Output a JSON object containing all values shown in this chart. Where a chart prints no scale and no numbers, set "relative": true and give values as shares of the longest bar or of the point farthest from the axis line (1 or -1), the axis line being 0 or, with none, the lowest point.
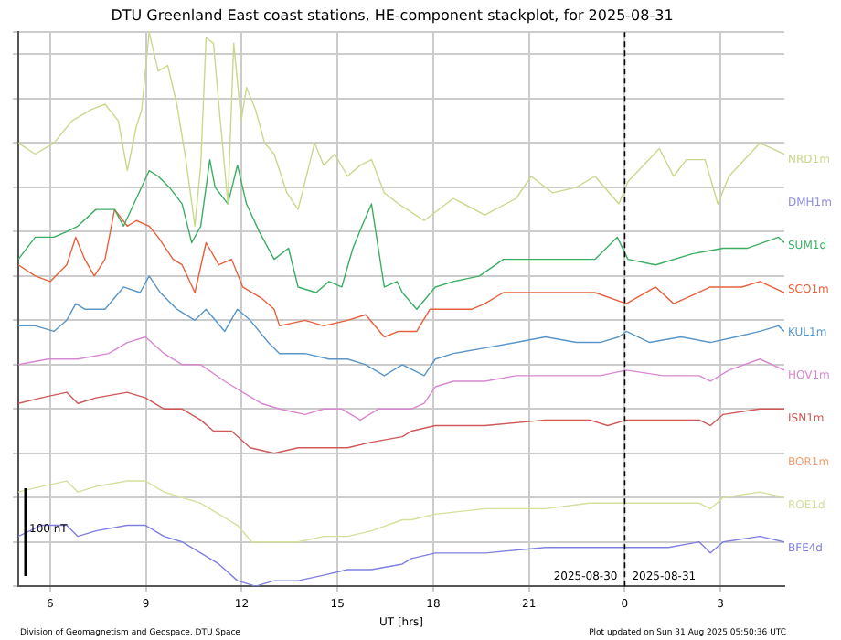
{
  "chart_data": {
    "type": "line",
    "title": "DTU Greenland East coast stations, HE-component stackplot, for 2025-08-31",
    "xlabel": "UT [hrs]",
    "relative": true,
    "grid": true,
    "legend": false,
    "marker": "none",
    "line_style": "solid",
    "xlim": [
      "2025-08-30T05:00",
      "2025-08-31T05:00"
    ],
    "xticks": [
      {
        "value": "2025-08-30T06:00",
        "label": "6"
      },
      {
        "value": "2025-08-30T09:00",
        "label": "9"
      },
      {
        "value": "2025-08-30T12:00",
        "label": "12"
      },
      {
        "value": "2025-08-30T15:00",
        "label": "15"
      },
      {
        "value": "2025-08-30T18:00",
        "label": "18"
      },
      {
        "value": "2025-08-30T21:00",
        "label": "21"
      },
      {
        "value": "2025-08-31T00:00",
        "label": "0"
      },
      {
        "value": "2025-08-31T03:00",
        "label": "3"
      }
    ],
    "ref_lines": [
      {
        "axis": "x",
        "value": "2025-08-31T00:00",
        "color": "#000000",
        "line_style": "dashed"
      }
    ],
    "annotations": [
      "2025-08-30",
      "2025-08-31",
      "100 nT",
      "Division of Geomagnetism and Geospace, DTU Space",
      "Plot updated on Sun 31 Aug 2025 05:50:36 UTC"
    ],
    "series": [
      {
        "name": "NRD1m",
        "color": "#c8d88c",
        "x": [
          "2025-08-30T05:00",
          "2025-08-30T05:32",
          "2025-08-30T06:07",
          "2025-08-30T06:41",
          "2025-08-30T07:16",
          "2025-08-30T07:43",
          "2025-08-30T08:08",
          "2025-08-30T08:25",
          "2025-08-30T08:42",
          "2025-08-30T08:52",
          "2025-08-30T09:06",
          "2025-08-30T09:23",
          "2025-08-30T09:41",
          "2025-08-30T09:58",
          "2025-08-30T10:15",
          "2025-08-30T10:32",
          "2025-08-30T10:43",
          "2025-08-30T10:53",
          "2025-08-30T11:07",
          "2025-08-30T11:17",
          "2025-08-30T11:34",
          "2025-08-30T11:45",
          "2025-08-30T11:59",
          "2025-08-30T12:09",
          "2025-08-30T12:26",
          "2025-08-30T12:43",
          "2025-08-30T13:01",
          "2025-08-30T13:25",
          "2025-08-30T13:46",
          "2025-08-30T14:17",
          "2025-08-30T14:34",
          "2025-08-30T14:55",
          "2025-08-30T15:19",
          "2025-08-30T15:43",
          "2025-08-30T16:04",
          "2025-08-30T16:28",
          "2025-08-30T16:55",
          "2025-08-30T17:43",
          "2025-08-30T18:38",
          "2025-08-30T19:37",
          "2025-08-30T20:36",
          "2025-08-30T21:04",
          "2025-08-30T21:45",
          "2025-08-30T22:29",
          "2025-08-30T23:04",
          "2025-08-30T23:49",
          "2025-08-31T00:06",
          "2025-08-31T01:05",
          "2025-08-31T01:32",
          "2025-08-31T01:56",
          "2025-08-31T02:31",
          "2025-08-31T02:55",
          "2025-08-31T03:16",
          "2025-08-31T04:14",
          "2025-08-31T05:00"
        ],
        "values": [
          0.8,
          0.78,
          0.8,
          0.84,
          0.86,
          0.87,
          0.84,
          0.75,
          0.83,
          0.86,
          1.0,
          0.93,
          0.94,
          0.87,
          0.77,
          0.65,
          0.76,
          0.99,
          0.98,
          0.87,
          0.69,
          0.98,
          0.84,
          0.9,
          0.86,
          0.8,
          0.78,
          0.71,
          0.68,
          0.8,
          0.76,
          0.78,
          0.74,
          0.76,
          0.77,
          0.71,
          0.69,
          0.66,
          0.7,
          0.67,
          0.7,
          0.74,
          0.71,
          0.72,
          0.74,
          0.69,
          0.73,
          0.79,
          0.74,
          0.77,
          0.77,
          0.69,
          0.74,
          0.8,
          0.78
        ]
      },
      {
        "name": "DMH1m",
        "color": "#8c8ce0"
      },
      {
        "name": "SUM1d",
        "color": "#3cae64",
        "x": [
          "2025-08-30T05:00",
          "2025-08-30T05:32",
          "2025-08-30T06:07",
          "2025-08-30T06:31",
          "2025-08-30T06:52",
          "2025-08-30T07:26",
          "2025-08-30T08:01",
          "2025-08-30T08:18",
          "2025-08-30T08:42",
          "2025-08-30T09:06",
          "2025-08-30T09:23",
          "2025-08-30T09:44",
          "2025-08-30T10:08",
          "2025-08-30T10:26",
          "2025-08-30T10:43",
          "2025-08-30T11:00",
          "2025-08-30T11:10",
          "2025-08-30T11:34",
          "2025-08-30T11:52",
          "2025-08-30T12:09",
          "2025-08-30T12:33",
          "2025-08-30T13:01",
          "2025-08-30T13:28",
          "2025-08-30T13:46",
          "2025-08-30T14:20",
          "2025-08-30T14:44",
          "2025-08-30T15:08",
          "2025-08-30T15:29",
          "2025-08-30T15:46",
          "2025-08-30T16:04",
          "2025-08-30T16:28",
          "2025-08-30T16:52",
          "2025-08-30T17:02",
          "2025-08-30T17:29",
          "2025-08-30T18:04",
          "2025-08-30T18:38",
          "2025-08-30T19:27",
          "2025-08-30T20:12",
          "2025-08-30T21:10",
          "2025-08-30T21:55",
          "2025-08-30T23:04",
          "2025-08-30T23:46",
          "2025-08-31T00:06",
          "2025-08-31T00:58",
          "2025-08-31T02:07",
          "2025-08-31T03:05",
          "2025-08-31T03:50",
          "2025-08-31T04:49",
          "2025-08-31T05:00"
        ],
        "values": [
          0.59,
          0.63,
          0.63,
          0.64,
          0.65,
          0.68,
          0.68,
          0.65,
          0.7,
          0.75,
          0.74,
          0.72,
          0.69,
          0.62,
          0.65,
          0.77,
          0.72,
          0.69,
          0.76,
          0.69,
          0.64,
          0.59,
          0.61,
          0.54,
          0.53,
          0.55,
          0.54,
          0.61,
          0.65,
          0.69,
          0.54,
          0.55,
          0.53,
          0.5,
          0.54,
          0.55,
          0.56,
          0.59,
          0.59,
          0.59,
          0.59,
          0.63,
          0.59,
          0.58,
          0.6,
          0.61,
          0.61,
          0.63,
          0.62
        ]
      },
      {
        "name": "SCO1m",
        "color": "#e8603c",
        "x": [
          "2025-08-30T05:00",
          "2025-08-30T05:32",
          "2025-08-30T06:00",
          "2025-08-30T06:31",
          "2025-08-30T06:48",
          "2025-08-30T07:05",
          "2025-08-30T07:23",
          "2025-08-30T07:43",
          "2025-08-30T08:01",
          "2025-08-30T08:25",
          "2025-08-30T08:42",
          "2025-08-30T09:06",
          "2025-08-30T09:23",
          "2025-08-30T09:51",
          "2025-08-30T10:08",
          "2025-08-30T10:32",
          "2025-08-30T10:53",
          "2025-08-30T11:17",
          "2025-08-30T11:41",
          "2025-08-30T12:02",
          "2025-08-30T12:37",
          "2025-08-30T13:01",
          "2025-08-30T13:11",
          "2025-08-30T13:59",
          "2025-08-30T14:34",
          "2025-08-30T15:19",
          "2025-08-30T15:53",
          "2025-08-30T16:28",
          "2025-08-30T16:55",
          "2025-08-30T17:29",
          "2025-08-30T17:54",
          "2025-08-30T18:38",
          "2025-08-30T19:13",
          "2025-08-30T19:37",
          "2025-08-30T20:12",
          "2025-08-30T21:10",
          "2025-08-30T22:05",
          "2025-08-30T23:04",
          "2025-08-31T00:03",
          "2025-08-31T00:58",
          "2025-08-31T01:32",
          "2025-08-31T02:41",
          "2025-08-31T03:40",
          "2025-08-31T04:14",
          "2025-08-31T05:00"
        ],
        "values": [
          0.58,
          0.56,
          0.55,
          0.58,
          0.63,
          0.59,
          0.56,
          0.59,
          0.68,
          0.65,
          0.66,
          0.65,
          0.63,
          0.59,
          0.58,
          0.53,
          0.62,
          0.58,
          0.59,
          0.54,
          0.52,
          0.5,
          0.47,
          0.48,
          0.47,
          0.48,
          0.49,
          0.45,
          0.46,
          0.46,
          0.5,
          0.5,
          0.5,
          0.51,
          0.53,
          0.53,
          0.53,
          0.53,
          0.51,
          0.54,
          0.51,
          0.54,
          0.54,
          0.55,
          0.53
        ]
      },
      {
        "name": "KUL1m",
        "color": "#5a96c8",
        "x": [
          "2025-08-30T05:00",
          "2025-08-30T05:32",
          "2025-08-30T06:07",
          "2025-08-30T06:31",
          "2025-08-30T06:48",
          "2025-08-30T07:05",
          "2025-08-30T07:43",
          "2025-08-30T08:18",
          "2025-08-30T08:49",
          "2025-08-30T09:06",
          "2025-08-30T09:27",
          "2025-08-30T09:58",
          "2025-08-30T10:32",
          "2025-08-30T10:53",
          "2025-08-30T11:28",
          "2025-08-30T11:52",
          "2025-08-30T12:16",
          "2025-08-30T12:50",
          "2025-08-30T13:11",
          "2025-08-30T13:59",
          "2025-08-30T14:44",
          "2025-08-30T15:19",
          "2025-08-30T15:53",
          "2025-08-30T16:28",
          "2025-08-30T17:02",
          "2025-08-30T17:43",
          "2025-08-30T18:04",
          "2025-08-30T18:38",
          "2025-08-30T19:37",
          "2025-08-30T20:36",
          "2025-08-30T21:31",
          "2025-08-30T22:29",
          "2025-08-30T23:14",
          "2025-08-30T23:49",
          "2025-08-31T00:03",
          "2025-08-31T00:47",
          "2025-08-31T01:46",
          "2025-08-31T02:41",
          "2025-08-31T03:29",
          "2025-08-31T04:14",
          "2025-08-31T04:49",
          "2025-08-31T05:00"
        ],
        "values": [
          0.47,
          0.47,
          0.46,
          0.48,
          0.51,
          0.5,
          0.5,
          0.54,
          0.53,
          0.56,
          0.53,
          0.5,
          0.48,
          0.5,
          0.46,
          0.5,
          0.48,
          0.44,
          0.42,
          0.42,
          0.41,
          0.41,
          0.4,
          0.38,
          0.4,
          0.38,
          0.41,
          0.42,
          0.43,
          0.44,
          0.45,
          0.44,
          0.44,
          0.45,
          0.46,
          0.44,
          0.45,
          0.44,
          0.45,
          0.46,
          0.47,
          0.46
        ]
      },
      {
        "name": "HOV1m",
        "color": "#d888d0",
        "x": [
          "2025-08-30T05:00",
          "2025-08-30T05:56",
          "2025-08-30T06:52",
          "2025-08-30T07:50",
          "2025-08-30T08:25",
          "2025-08-30T08:59",
          "2025-08-30T09:34",
          "2025-08-30T10:08",
          "2025-08-30T10:43",
          "2025-08-30T11:28",
          "2025-08-30T12:02",
          "2025-08-30T12:37",
          "2025-08-30T13:11",
          "2025-08-30T13:59",
          "2025-08-30T14:34",
          "2025-08-30T15:08",
          "2025-08-30T15:43",
          "2025-08-30T16:17",
          "2025-08-30T16:55",
          "2025-08-30T17:19",
          "2025-08-30T17:43",
          "2025-08-30T18:04",
          "2025-08-30T18:38",
          "2025-08-30T19:37",
          "2025-08-30T20:36",
          "2025-08-30T21:31",
          "2025-08-30T22:29",
          "2025-08-30T23:14",
          "2025-08-31T00:03",
          "2025-08-31T01:12",
          "2025-08-31T02:20",
          "2025-08-31T02:41",
          "2025-08-31T03:16",
          "2025-08-31T04:14",
          "2025-08-31T05:00"
        ],
        "values": [
          0.4,
          0.41,
          0.41,
          0.42,
          0.44,
          0.45,
          0.42,
          0.4,
          0.4,
          0.37,
          0.35,
          0.33,
          0.32,
          0.31,
          0.32,
          0.32,
          0.3,
          0.32,
          0.32,
          0.32,
          0.33,
          0.36,
          0.37,
          0.37,
          0.38,
          0.38,
          0.38,
          0.38,
          0.39,
          0.38,
          0.38,
          0.37,
          0.39,
          0.41,
          0.39
        ]
      },
      {
        "name": "ISN1m",
        "color": "#d05858",
        "x": [
          "2025-08-30T05:00",
          "2025-08-30T05:43",
          "2025-08-30T06:31",
          "2025-08-30T06:52",
          "2025-08-30T07:26",
          "2025-08-30T08:25",
          "2025-08-30T08:59",
          "2025-08-30T09:34",
          "2025-08-30T10:08",
          "2025-08-30T10:43",
          "2025-08-30T11:07",
          "2025-08-30T11:41",
          "2025-08-30T12:16",
          "2025-08-30T13:01",
          "2025-08-30T13:46",
          "2025-08-30T14:34",
          "2025-08-30T15:19",
          "2025-08-30T16:04",
          "2025-08-30T17:02",
          "2025-08-30T17:19",
          "2025-08-30T18:04",
          "2025-08-30T19:37",
          "2025-08-30T21:31",
          "2025-08-30T22:54",
          "2025-08-30T23:28",
          "2025-08-31T00:03",
          "2025-08-31T01:22",
          "2025-08-31T02:20",
          "2025-08-31T02:41",
          "2025-08-31T03:05",
          "2025-08-31T04:14",
          "2025-08-31T05:00"
        ],
        "values": [
          0.33,
          0.34,
          0.35,
          0.33,
          0.34,
          0.35,
          0.34,
          0.32,
          0.32,
          0.3,
          0.28,
          0.28,
          0.25,
          0.24,
          0.25,
          0.25,
          0.25,
          0.26,
          0.27,
          0.28,
          0.29,
          0.29,
          0.3,
          0.3,
          0.29,
          0.3,
          0.3,
          0.3,
          0.29,
          0.31,
          0.32,
          0.32
        ]
      },
      {
        "name": "BOR1m",
        "color": "#f0a070"
      },
      {
        "name": "ROE1d",
        "color": "#d4e09c",
        "x": [
          "2025-08-30T05:00",
          "2025-08-30T05:43",
          "2025-08-30T06:31",
          "2025-08-30T06:52",
          "2025-08-30T07:26",
          "2025-08-30T08:25",
          "2025-08-30T08:59",
          "2025-08-30T09:34",
          "2025-08-30T10:08",
          "2025-08-30T10:43",
          "2025-08-30T11:17",
          "2025-08-30T11:52",
          "2025-08-30T12:19",
          "2025-08-30T13:01",
          "2025-08-30T13:46",
          "2025-08-30T14:34",
          "2025-08-30T15:19",
          "2025-08-30T16:04",
          "2025-08-30T17:02",
          "2025-08-30T17:19",
          "2025-08-30T18:04",
          "2025-08-30T19:37",
          "2025-08-30T21:31",
          "2025-08-30T22:54",
          "2025-08-31T00:03",
          "2025-08-31T01:22",
          "2025-08-31T02:20",
          "2025-08-31T02:41",
          "2025-08-31T03:05",
          "2025-08-31T04:14",
          "2025-08-31T05:00"
        ],
        "values": [
          0.17,
          0.18,
          0.19,
          0.17,
          0.18,
          0.19,
          0.19,
          0.17,
          0.16,
          0.15,
          0.13,
          0.11,
          0.08,
          0.08,
          0.08,
          0.09,
          0.09,
          0.1,
          0.12,
          0.12,
          0.13,
          0.14,
          0.14,
          0.15,
          0.15,
          0.15,
          0.15,
          0.14,
          0.16,
          0.17,
          0.16
        ]
      },
      {
        "name": "BFE4d",
        "color": "#8080e0",
        "x": [
          "2025-08-30T05:00",
          "2025-08-30T05:43",
          "2025-08-30T06:31",
          "2025-08-30T06:52",
          "2025-08-30T07:26",
          "2025-08-30T08:25",
          "2025-08-30T08:59",
          "2025-08-30T09:34",
          "2025-08-30T10:08",
          "2025-08-30T10:43",
          "2025-08-30T11:17",
          "2025-08-30T11:52",
          "2025-08-30T12:26",
          "2025-08-30T13:01",
          "2025-08-30T13:46",
          "2025-08-30T14:34",
          "2025-08-30T15:19",
          "2025-08-30T16:04",
          "2025-08-30T17:02",
          "2025-08-30T17:19",
          "2025-08-30T18:04",
          "2025-08-30T19:37",
          "2025-08-30T21:31",
          "2025-08-30T22:54",
          "2025-08-31T00:03",
          "2025-08-31T01:22",
          "2025-08-31T02:20",
          "2025-08-31T02:41",
          "2025-08-31T03:05",
          "2025-08-31T04:14",
          "2025-08-31T05:00"
        ],
        "values": [
          0.09,
          0.11,
          0.11,
          0.09,
          0.1,
          0.11,
          0.11,
          0.09,
          0.08,
          0.06,
          0.04,
          0.01,
          0,
          0.01,
          0.01,
          0.02,
          0.03,
          0.03,
          0.04,
          0.05,
          0.06,
          0.06,
          0.07,
          0.07,
          0.07,
          0.07,
          0.08,
          0.06,
          0.08,
          0.09,
          0.08
        ]
      }
    ]
  }
}
